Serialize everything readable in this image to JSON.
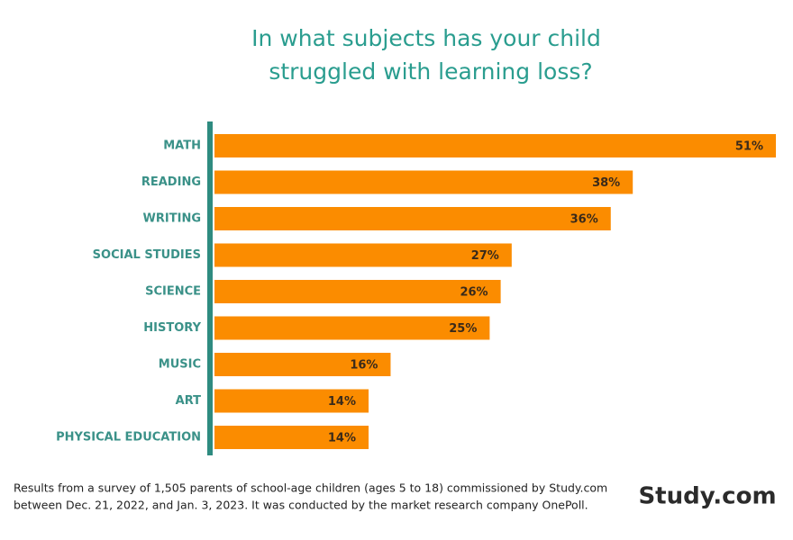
{
  "chart_data": {
    "type": "bar",
    "orientation": "horizontal",
    "title": [
      "In what subjects has your child",
      "struggled with learning loss?"
    ],
    "categories": [
      "MATH",
      "READING",
      "WRITING",
      "SOCIAL STUDIES",
      "SCIENCE",
      "HISTORY",
      "MUSIC",
      "ART",
      "PHYSICAL EDUCATION"
    ],
    "values": [
      51,
      38,
      36,
      27,
      26,
      25,
      16,
      14,
      14
    ],
    "value_labels": [
      "51%",
      "38%",
      "36%",
      "27%",
      "26%",
      "25%",
      "16%",
      "14%",
      "14%"
    ],
    "color": "#fb8c00",
    "axis_color": "#2e8b80",
    "note": [
      "Results from a survey of 1,505 parents of school-age children (ages 5 to 18) commissioned by Study.com",
      "between Dec. 21, 2022, and Jan. 3, 2023. It was conducted by the market research company OnePoll."
    ],
    "logo": "Study.com"
  }
}
